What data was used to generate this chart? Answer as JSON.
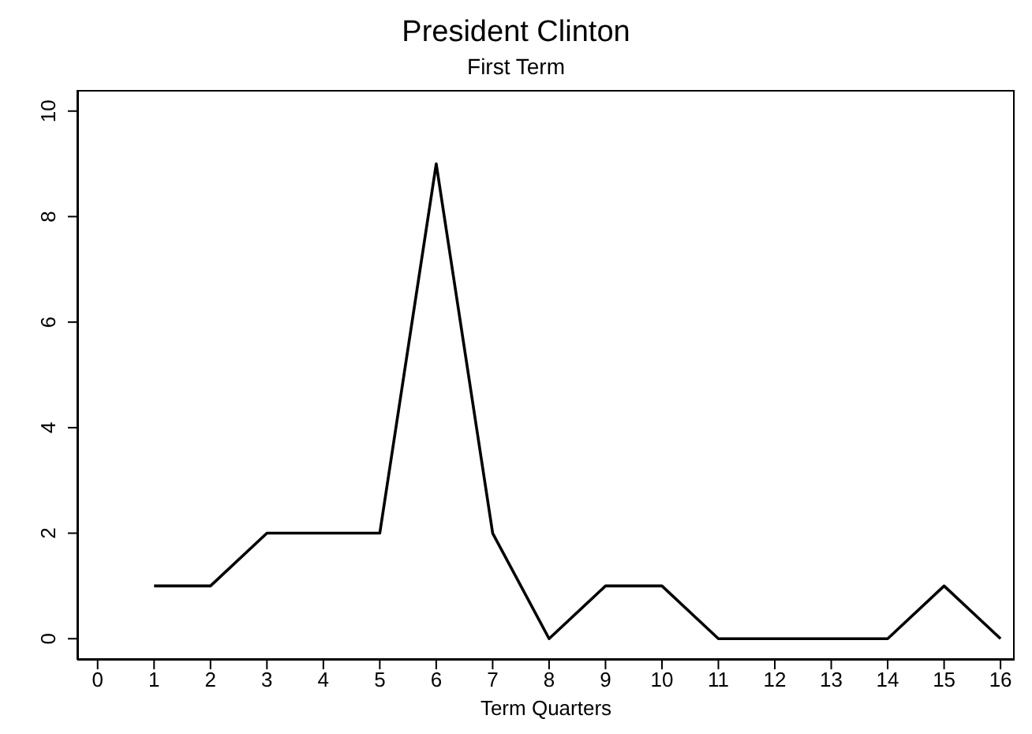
{
  "chart_data": {
    "type": "line",
    "title": "President Clinton",
    "subtitle": "First Term",
    "xlabel": "Term Quarters",
    "x": [
      1,
      2,
      3,
      4,
      5,
      6,
      7,
      8,
      9,
      10,
      11,
      12,
      13,
      14,
      15,
      16
    ],
    "series": [
      {
        "color": "#000000",
        "values": [
          1,
          1,
          2,
          2,
          2,
          9,
          2,
          0,
          1,
          1,
          0,
          0,
          0,
          0,
          1,
          0
        ]
      }
    ],
    "xlim": [
      -0.36,
      16.25
    ],
    "xticks": [
      0,
      1,
      2,
      3,
      4,
      5,
      6,
      7,
      8,
      9,
      10,
      11,
      12,
      13,
      14,
      15,
      16
    ],
    "ylim": [
      -0.4,
      10.4
    ],
    "yticks": [
      0,
      2,
      4,
      6,
      8,
      10
    ],
    "grid": false,
    "marker": "none",
    "line_style": "solid"
  }
}
